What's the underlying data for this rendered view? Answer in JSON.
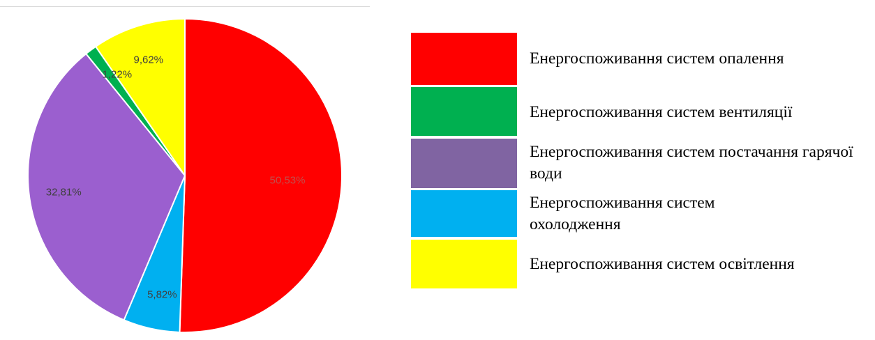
{
  "chart_data": {
    "type": "pie",
    "title": "",
    "slices": [
      {
        "label": "Енергоспоживання систем опалення",
        "value": 50.53,
        "value_label": "50,53%",
        "color": "#FF0000",
        "legend_color": "#FF0000",
        "label_color": "#C0504D"
      },
      {
        "label": "Енергоспоживання систем охолодження",
        "value": 5.82,
        "value_label": "5,82%",
        "color": "#00B0F0",
        "legend_color": "#00B0F0",
        "label_color": "#404040"
      },
      {
        "label": "Енергоспоживання систем постачання гарячої води",
        "value": 32.81,
        "value_label": "32,81%",
        "color": "#9B5FCF",
        "legend_color": "#8064A2",
        "label_color": "#404040"
      },
      {
        "label": "Енергоспоживання систем вентиляції",
        "value": 1.22,
        "value_label": "1,22%",
        "color": "#00B050",
        "legend_color": "#00B050",
        "label_color": "#404040"
      },
      {
        "label": "Енергоспоживання систем освітлення",
        "value": 9.62,
        "value_label": "9,62%",
        "color": "#FFFF00",
        "legend_color": "#FFFF00",
        "label_color": "#404040"
      }
    ],
    "start": "12 o'clock",
    "direction": "clockwise",
    "legend_placement": "right"
  },
  "legend": {
    "items": [
      {
        "label": "Енергоспоживання систем опалення",
        "color": "#FF0000"
      },
      {
        "label": "Енергоспоживання систем вентиляції",
        "color": "#00B050"
      },
      {
        "label": "Енергоспоживання систем постачання гарячої води",
        "color": "#8064A2"
      },
      {
        "label": "Енергоспоживання систем охолодження",
        "color": "#00B0F0"
      },
      {
        "label": "Енергоспоживання систем освітлення",
        "color": "#FFFF00"
      }
    ]
  }
}
